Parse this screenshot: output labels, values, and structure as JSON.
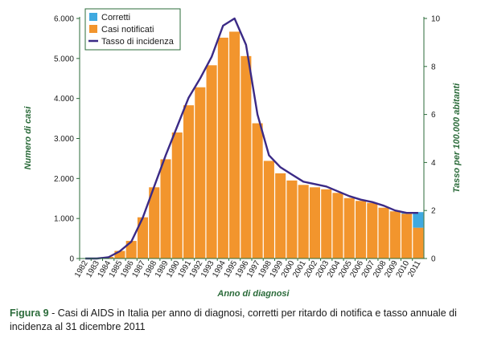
{
  "chart_data": {
    "type": "bar",
    "categories": [
      "1982",
      "1983",
      "1984",
      "1985",
      "1986",
      "1987",
      "1988",
      "1989",
      "1990",
      "1991",
      "1992",
      "1993",
      "1994",
      "1995",
      "1996",
      "1997",
      "1998",
      "1999",
      "2000",
      "2001",
      "2002",
      "2003",
      "2004",
      "2005",
      "2006",
      "2007",
      "2008",
      "2009",
      "2010",
      "2011"
    ],
    "series": [
      {
        "name": "Corretti",
        "kind": "bar-stack-top",
        "color": "#3fa9e0",
        "values": [
          0,
          0,
          0,
          0,
          0,
          0,
          0,
          0,
          0,
          0,
          0,
          0,
          0,
          0,
          0,
          0,
          0,
          0,
          0,
          0,
          0,
          0,
          0,
          0,
          0,
          0,
          0,
          0,
          20,
          390
        ]
      },
      {
        "name": "Casi notificati",
        "kind": "bar",
        "color": "#f2952d",
        "values": [
          5,
          10,
          40,
          190,
          440,
          1030,
          1780,
          2480,
          3150,
          3830,
          4280,
          4830,
          5520,
          5670,
          5060,
          3380,
          2440,
          2130,
          1950,
          1840,
          1780,
          1730,
          1640,
          1510,
          1440,
          1390,
          1270,
          1180,
          1120,
          770
        ]
      },
      {
        "name": "Tasso di incidenza",
        "kind": "line",
        "axis": "right",
        "color": "#3b2a86",
        "values": [
          0,
          0,
          0.05,
          0.3,
          0.7,
          1.7,
          3.0,
          4.3,
          5.5,
          6.7,
          7.5,
          8.4,
          9.7,
          10.0,
          8.9,
          6.0,
          4.3,
          3.8,
          3.5,
          3.2,
          3.1,
          3.0,
          2.8,
          2.6,
          2.45,
          2.35,
          2.2,
          2.0,
          1.9,
          1.9
        ]
      }
    ],
    "ylabel": "Numero di casi",
    "y2label": "Tasso per 100.000 abitanti",
    "xlabel": "Anno di diagnosi",
    "ylim": [
      0,
      6000
    ],
    "y2lim": [
      0,
      10
    ],
    "yticks": [
      "0",
      "1.000",
      "2.000",
      "3.000",
      "4.000",
      "5.000",
      "6.000"
    ],
    "y2ticks": [
      "0",
      "2",
      "4",
      "6",
      "8",
      "10"
    ],
    "legend_placement": "top-left",
    "grid": false
  },
  "caption": {
    "label": "Figura 9",
    "text": " - Casi di AIDS in Italia per anno di diagnosi, corretti per ritardo di notifica e tasso annuale di incidenza al 31 dicembre 2011"
  }
}
